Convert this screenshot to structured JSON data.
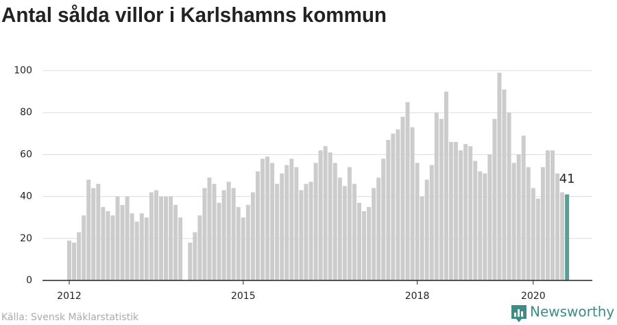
{
  "chart_data": {
    "type": "bar",
    "title": "Antal sålda villor i Karlshamns kommun",
    "source": "Källa: Svensk Mäklarstatistik",
    "brand": "Newsworthy",
    "categories": [
      "2012",
      null,
      null,
      null,
      null,
      null,
      null,
      null,
      null,
      null,
      null,
      null,
      null,
      null,
      null,
      null,
      null,
      null,
      null,
      null,
      null,
      null,
      null,
      null,
      null,
      null,
      null,
      null,
      null,
      null,
      null,
      null,
      null,
      null,
      null,
      null,
      "2015",
      null,
      null,
      null,
      null,
      null,
      null,
      null,
      null,
      null,
      null,
      null,
      null,
      null,
      null,
      null,
      null,
      null,
      null,
      null,
      null,
      null,
      null,
      null,
      null,
      null,
      null,
      null,
      null,
      null,
      null,
      null,
      null,
      null,
      null,
      null,
      "2018",
      null,
      null,
      null,
      null,
      null,
      null,
      null,
      null,
      null,
      null,
      null,
      null,
      null,
      null,
      null,
      null,
      null,
      null,
      null,
      null,
      null,
      null,
      null,
      "2020",
      null,
      null,
      null,
      null,
      null,
      null,
      null
    ],
    "values": [
      19,
      18,
      23,
      31,
      48,
      44,
      46,
      35,
      33,
      31,
      40,
      36,
      40,
      32,
      28,
      32,
      30,
      42,
      43,
      40,
      40,
      40,
      36,
      30,
      null,
      18,
      23,
      31,
      44,
      49,
      46,
      37,
      43,
      47,
      44,
      35,
      30,
      36,
      42,
      52,
      58,
      59,
      56,
      46,
      51,
      55,
      58,
      54,
      43,
      46,
      47,
      56,
      62,
      64,
      61,
      56,
      49,
      45,
      54,
      46,
      37,
      33,
      35,
      44,
      49,
      58,
      67,
      70,
      72,
      78,
      85,
      73,
      56,
      40,
      48,
      55,
      80,
      77,
      90,
      66,
      66,
      62,
      65,
      64,
      57,
      52,
      51,
      60,
      77,
      99,
      91,
      80,
      56,
      60,
      69,
      54,
      44,
      39,
      54,
      62,
      62,
      51,
      42,
      41
    ],
    "value_labels": [
      null,
      null,
      null,
      null,
      null,
      null,
      null,
      null,
      null,
      null,
      null,
      null,
      null,
      null,
      null,
      null,
      null,
      null,
      null,
      null,
      null,
      null,
      null,
      null,
      null,
      null,
      null,
      null,
      null,
      null,
      null,
      null,
      null,
      null,
      null,
      null,
      null,
      null,
      null,
      null,
      null,
      null,
      null,
      null,
      null,
      null,
      null,
      null,
      null,
      null,
      null,
      null,
      null,
      null,
      null,
      null,
      null,
      null,
      null,
      null,
      null,
      null,
      null,
      null,
      null,
      null,
      null,
      null,
      null,
      null,
      null,
      null,
      null,
      null,
      null,
      null,
      null,
      null,
      null,
      null,
      null,
      null,
      null,
      null,
      null,
      null,
      null,
      null,
      null,
      null,
      null,
      null,
      null,
      null,
      null,
      null,
      null,
      null,
      null,
      null,
      null,
      null,
      null,
      "41"
    ],
    "color": "#cccccc",
    "highlight_color": "#5a9e94",
    "ylim": [
      0,
      100
    ],
    "yticks": [
      0,
      20,
      40,
      60,
      80,
      100
    ],
    "grid": true
  }
}
